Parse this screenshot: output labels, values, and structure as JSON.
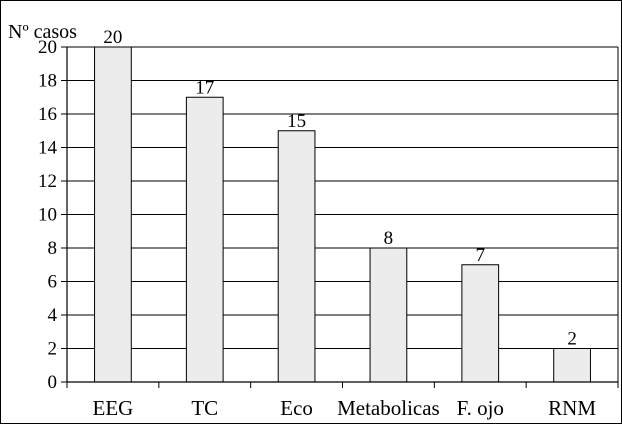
{
  "chart_data": {
    "type": "bar",
    "title": "",
    "xlabel": "",
    "ylabel": "Nº casos",
    "categories": [
      "EEG",
      "TC",
      "Eco",
      "Metabolicas",
      "F. ojo",
      "RNM"
    ],
    "values": [
      20,
      17,
      15,
      8,
      7,
      2
    ],
    "data_labels": [
      "20",
      "17",
      "15",
      "8",
      "7",
      "2"
    ],
    "ylim": [
      0,
      20
    ],
    "yticks": [
      0,
      2,
      4,
      6,
      8,
      10,
      12,
      14,
      16,
      18,
      20
    ],
    "ytick_labels": [
      "0",
      "2",
      "4",
      "6",
      "8",
      "10",
      "12",
      "14",
      "16",
      "18",
      "20"
    ],
    "grid": true,
    "legend": "none",
    "bar_color": "#ececec",
    "bar_stroke": "#000000"
  }
}
